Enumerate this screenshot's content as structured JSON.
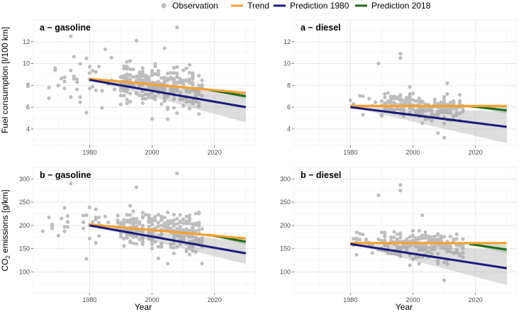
{
  "legend": {
    "items": [
      {
        "label": "Observation",
        "color": "#bdbdbd",
        "kind": "point"
      },
      {
        "label": "Trend",
        "color": "#f5a030",
        "kind": "line"
      },
      {
        "label": "Prediction 1980",
        "color": "#1a1a7a",
        "kind": "line"
      },
      {
        "label": "Prediction 2018",
        "color": "#1e6a1e",
        "kind": "line"
      }
    ]
  },
  "axes": {
    "xlabel": "Year",
    "ylabel_top": "Fuel consumption [l/100 km]",
    "ylabel_bottom_pre": "CO",
    "ylabel_bottom_sub": "2",
    "ylabel_bottom_post": " emissions [g/km]"
  },
  "chart_data": [
    {
      "type": "scatter",
      "panel": "top-left",
      "title": "a − gasoline",
      "xlim": [
        1962,
        2033
      ],
      "ylim": [
        2.5,
        14
      ],
      "x_ticks": [
        1980,
        2000,
        2020
      ],
      "y_ticks": [
        4,
        6,
        8,
        10,
        12
      ],
      "observations": {
        "x_range": [
          1965,
          2018
        ],
        "y_center": 8.0,
        "y_spread": 1.3,
        "count": 320,
        "outliers": [
          [
            1974,
            12.5
          ],
          [
            1995,
            12.1
          ],
          [
            2004,
            11.4
          ],
          [
            2008,
            13.3
          ],
          [
            1985,
            11.3
          ],
          [
            2005,
            4.9
          ],
          [
            1979,
            5.5
          ]
        ]
      },
      "trend": {
        "x": [
          1980,
          2030
        ],
        "y": [
          8.6,
          7.3
        ],
        "band_width": 0.12
      },
      "prediction_1980": {
        "x": [
          1980,
          2030
        ],
        "y": [
          8.5,
          6.0
        ],
        "band": {
          "x": [
            1980,
            2030
          ],
          "lower": [
            8.5,
            4.6
          ],
          "upper": [
            8.5,
            7.2
          ]
        }
      },
      "prediction_2018": {
        "x": [
          2018,
          2030
        ],
        "y": [
          7.6,
          7.0
        ],
        "band": {
          "x": [
            2018,
            2030
          ],
          "lower": [
            7.6,
            6.8
          ],
          "upper": [
            7.6,
            7.3
          ]
        }
      }
    },
    {
      "type": "scatter",
      "panel": "top-right",
      "title": "a − diesel",
      "xlim": [
        1962,
        2033
      ],
      "ylim": [
        2.5,
        14
      ],
      "x_ticks": [
        1980,
        2000,
        2020
      ],
      "y_ticks": [
        4,
        6,
        8,
        10,
        12
      ],
      "observations": {
        "x_range": [
          1980,
          2016
        ],
        "y_center": 6.0,
        "y_spread": 0.8,
        "count": 230,
        "outliers": [
          [
            1989,
            10.0
          ],
          [
            1996,
            10.9
          ],
          [
            1996,
            10.5
          ],
          [
            2010,
            3.2
          ],
          [
            2011,
            8.2
          ]
        ]
      },
      "trend": {
        "x": [
          1980,
          2030
        ],
        "y": [
          6.1,
          6.1
        ],
        "band_width": 0.15
      },
      "prediction_1980": {
        "x": [
          1980,
          2030
        ],
        "y": [
          6.0,
          4.2
        ],
        "band": {
          "x": [
            1980,
            2030
          ],
          "lower": [
            6.0,
            2.7
          ],
          "upper": [
            6.0,
            5.6
          ]
        }
      },
      "prediction_2018": {
        "x": [
          2018,
          2030
        ],
        "y": [
          6.1,
          5.7
        ],
        "band": {
          "x": [
            2018,
            2030
          ],
          "lower": [
            6.1,
            5.4
          ],
          "upper": [
            6.1,
            6.0
          ]
        }
      }
    },
    {
      "type": "scatter",
      "panel": "bottom-left",
      "title": "b − gasoline",
      "xlim": [
        1962,
        2033
      ],
      "ylim": [
        55,
        325
      ],
      "x_ticks": [
        1980,
        2000,
        2020
      ],
      "y_ticks": [
        100,
        150,
        200,
        250,
        300
      ],
      "observations": {
        "x_range": [
          1965,
          2018
        ],
        "y_center": 190,
        "y_spread": 30,
        "count": 320,
        "outliers": [
          [
            1974,
            290
          ],
          [
            1995,
            282
          ],
          [
            2008,
            312
          ],
          [
            1979,
            128
          ],
          [
            2005,
            118
          ],
          [
            2016,
            118
          ]
        ]
      },
      "trend": {
        "x": [
          1980,
          2030
        ],
        "y": [
          202,
          172
        ],
        "band_width": 3
      },
      "prediction_1980": {
        "x": [
          1980,
          2030
        ],
        "y": [
          200,
          140
        ],
        "band": {
          "x": [
            1980,
            2030
          ],
          "lower": [
            200,
            117
          ],
          "upper": [
            200,
            165
          ]
        }
      },
      "prediction_2018": {
        "x": [
          2018,
          2030
        ],
        "y": [
          180,
          165
        ],
        "band": {
          "x": [
            2018,
            2030
          ],
          "lower": [
            180,
            158
          ],
          "upper": [
            180,
            172
          ]
        }
      }
    },
    {
      "type": "scatter",
      "panel": "bottom-right",
      "title": "b − diesel",
      "xlim": [
        1962,
        2033
      ],
      "ylim": [
        55,
        325
      ],
      "x_ticks": [
        1980,
        2000,
        2020
      ],
      "y_ticks": [
        100,
        150,
        200,
        250,
        300
      ],
      "observations": {
        "x_range": [
          1980,
          2016
        ],
        "y_center": 158,
        "y_spread": 20,
        "count": 230,
        "outliers": [
          [
            1989,
            265
          ],
          [
            1996,
            287
          ],
          [
            1996,
            275
          ],
          [
            2010,
            82
          ],
          [
            2003,
            222
          ]
        ]
      },
      "trend": {
        "x": [
          1980,
          2030
        ],
        "y": [
          162,
          162
        ],
        "band_width": 3
      },
      "prediction_1980": {
        "x": [
          1980,
          2030
        ],
        "y": [
          160,
          108
        ],
        "band": {
          "x": [
            1980,
            2030
          ],
          "lower": [
            160,
            72
          ],
          "upper": [
            160,
            148
          ]
        }
      },
      "prediction_2018": {
        "x": [
          2018,
          2030
        ],
        "y": [
          160,
          148
        ],
        "band": {
          "x": [
            2018,
            2030
          ],
          "lower": [
            160,
            140
          ],
          "upper": [
            160,
            158
          ]
        }
      }
    }
  ]
}
